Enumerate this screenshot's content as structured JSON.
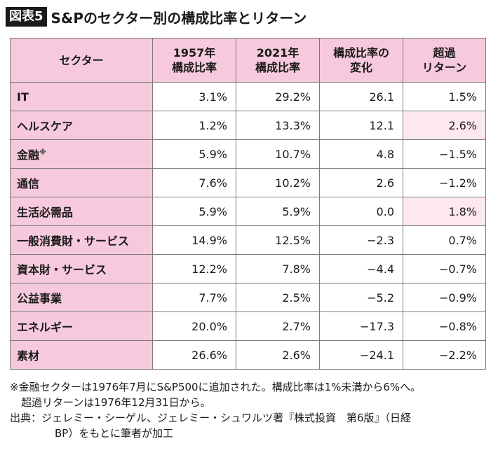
{
  "figure": {
    "label": "図表5",
    "title": "S&Pのセクター別の構成比率とリターン"
  },
  "table": {
    "headers": [
      [
        "セクター"
      ],
      [
        "1957年",
        "構成比率"
      ],
      [
        "2021年",
        "構成比率"
      ],
      [
        "構成比率の",
        "変化"
      ],
      [
        "超過",
        "リターン"
      ]
    ],
    "rows": [
      {
        "sector": "IT",
        "mark": "",
        "y1957": "3.1%",
        "y2021": "29.2%",
        "change": "26.1",
        "excess": "1.5%",
        "highlight": false
      },
      {
        "sector": "ヘルスケア",
        "mark": "",
        "y1957": "1.2%",
        "y2021": "13.3%",
        "change": "12.1",
        "excess": "2.6%",
        "highlight": true
      },
      {
        "sector": "金融",
        "mark": "※",
        "y1957": "5.9%",
        "y2021": "10.7%",
        "change": "4.8",
        "excess": "−1.5%",
        "highlight": false
      },
      {
        "sector": "通信",
        "mark": "",
        "y1957": "7.6%",
        "y2021": "10.2%",
        "change": "2.6",
        "excess": "−1.2%",
        "highlight": false
      },
      {
        "sector": "生活必需品",
        "mark": "",
        "y1957": "5.9%",
        "y2021": "5.9%",
        "change": "0.0",
        "excess": "1.8%",
        "highlight": true
      },
      {
        "sector": "一般消費財・サービス",
        "mark": "",
        "y1957": "14.9%",
        "y2021": "12.5%",
        "change": "−2.3",
        "excess": "0.7%",
        "highlight": false
      },
      {
        "sector": "資本財・サービス",
        "mark": "",
        "y1957": "12.2%",
        "y2021": "7.8%",
        "change": "−4.4",
        "excess": "−0.7%",
        "highlight": false
      },
      {
        "sector": "公益事業",
        "mark": "",
        "y1957": "7.7%",
        "y2021": "2.5%",
        "change": "−5.2",
        "excess": "−0.9%",
        "highlight": false
      },
      {
        "sector": "エネルギー",
        "mark": "",
        "y1957": "20.0%",
        "y2021": "2.7%",
        "change": "−17.3",
        "excess": "−0.8%",
        "highlight": false
      },
      {
        "sector": "素材",
        "mark": "",
        "y1957": "26.6%",
        "y2021": "2.6%",
        "change": "−24.1",
        "excess": "−2.2%",
        "highlight": false
      }
    ]
  },
  "notes": {
    "footnote_line1": "※金融セクターは1976年7月にS&P500に追加された。構成比率は1%未満から6%へ。",
    "footnote_line2": "超過リターンは1976年12月31日から。",
    "source_line1": "出典：ジェレミー・シーゲル、ジェレミー・シュワルツ著『株式投資　第6版』（日経",
    "source_line2": "BP）をもとに筆者が加工"
  },
  "colors": {
    "header_pink": "#f6c9dc",
    "highlight_pink": "#fde8f0",
    "label_bg": "#1a1a1a"
  }
}
